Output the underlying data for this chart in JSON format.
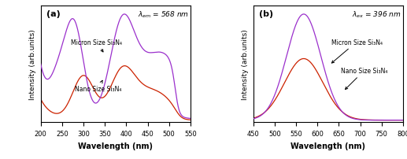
{
  "panel_a": {
    "xlabel": "Wavelength (nm)",
    "ylabel": "Intensity (arb.units)",
    "label": "(a)",
    "xlim": [
      200,
      550
    ],
    "micron_label": "Micron Size Si₃N₄",
    "nano_label": "Nano Size Si₃N₄",
    "micron_color": "#9B30CC",
    "nano_color": "#CC2200",
    "lambda_text": "$\\lambda_{em}$ = 568 nm"
  },
  "panel_b": {
    "xlabel": "Wavelength (nm)",
    "ylabel": "Intensity (arb.units)",
    "label": "(b)",
    "xlim": [
      450,
      800
    ],
    "micron_label": "Micron Size Si₃N₄",
    "nano_label": "Nano Size Si₃N₄",
    "micron_color": "#9B30CC",
    "nano_color": "#CC2200",
    "lambda_text": "$\\lambda_{ex}$ = 396 nm"
  }
}
